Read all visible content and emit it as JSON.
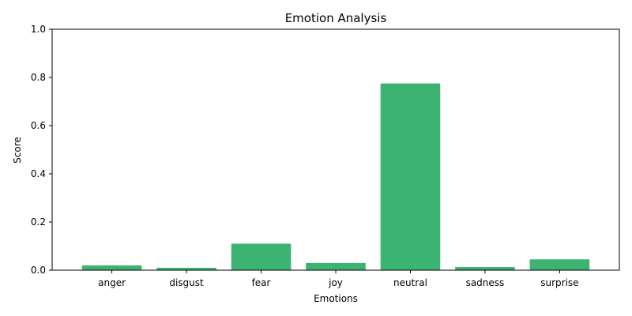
{
  "chart_data": {
    "type": "bar",
    "title": "Emotion Analysis",
    "xlabel": "Emotions",
    "ylabel": "Score",
    "categories": [
      "anger",
      "disgust",
      "fear",
      "joy",
      "neutral",
      "sadness",
      "surprise"
    ],
    "values": [
      0.02,
      0.01,
      0.11,
      0.03,
      0.775,
      0.013,
      0.045
    ],
    "ylim": [
      0,
      1.0
    ],
    "yticks": [
      "0.0",
      "0.2",
      "0.4",
      "0.6",
      "0.8",
      "1.0"
    ],
    "bar_color": "#3cb371",
    "grid": false,
    "legend": "none"
  }
}
